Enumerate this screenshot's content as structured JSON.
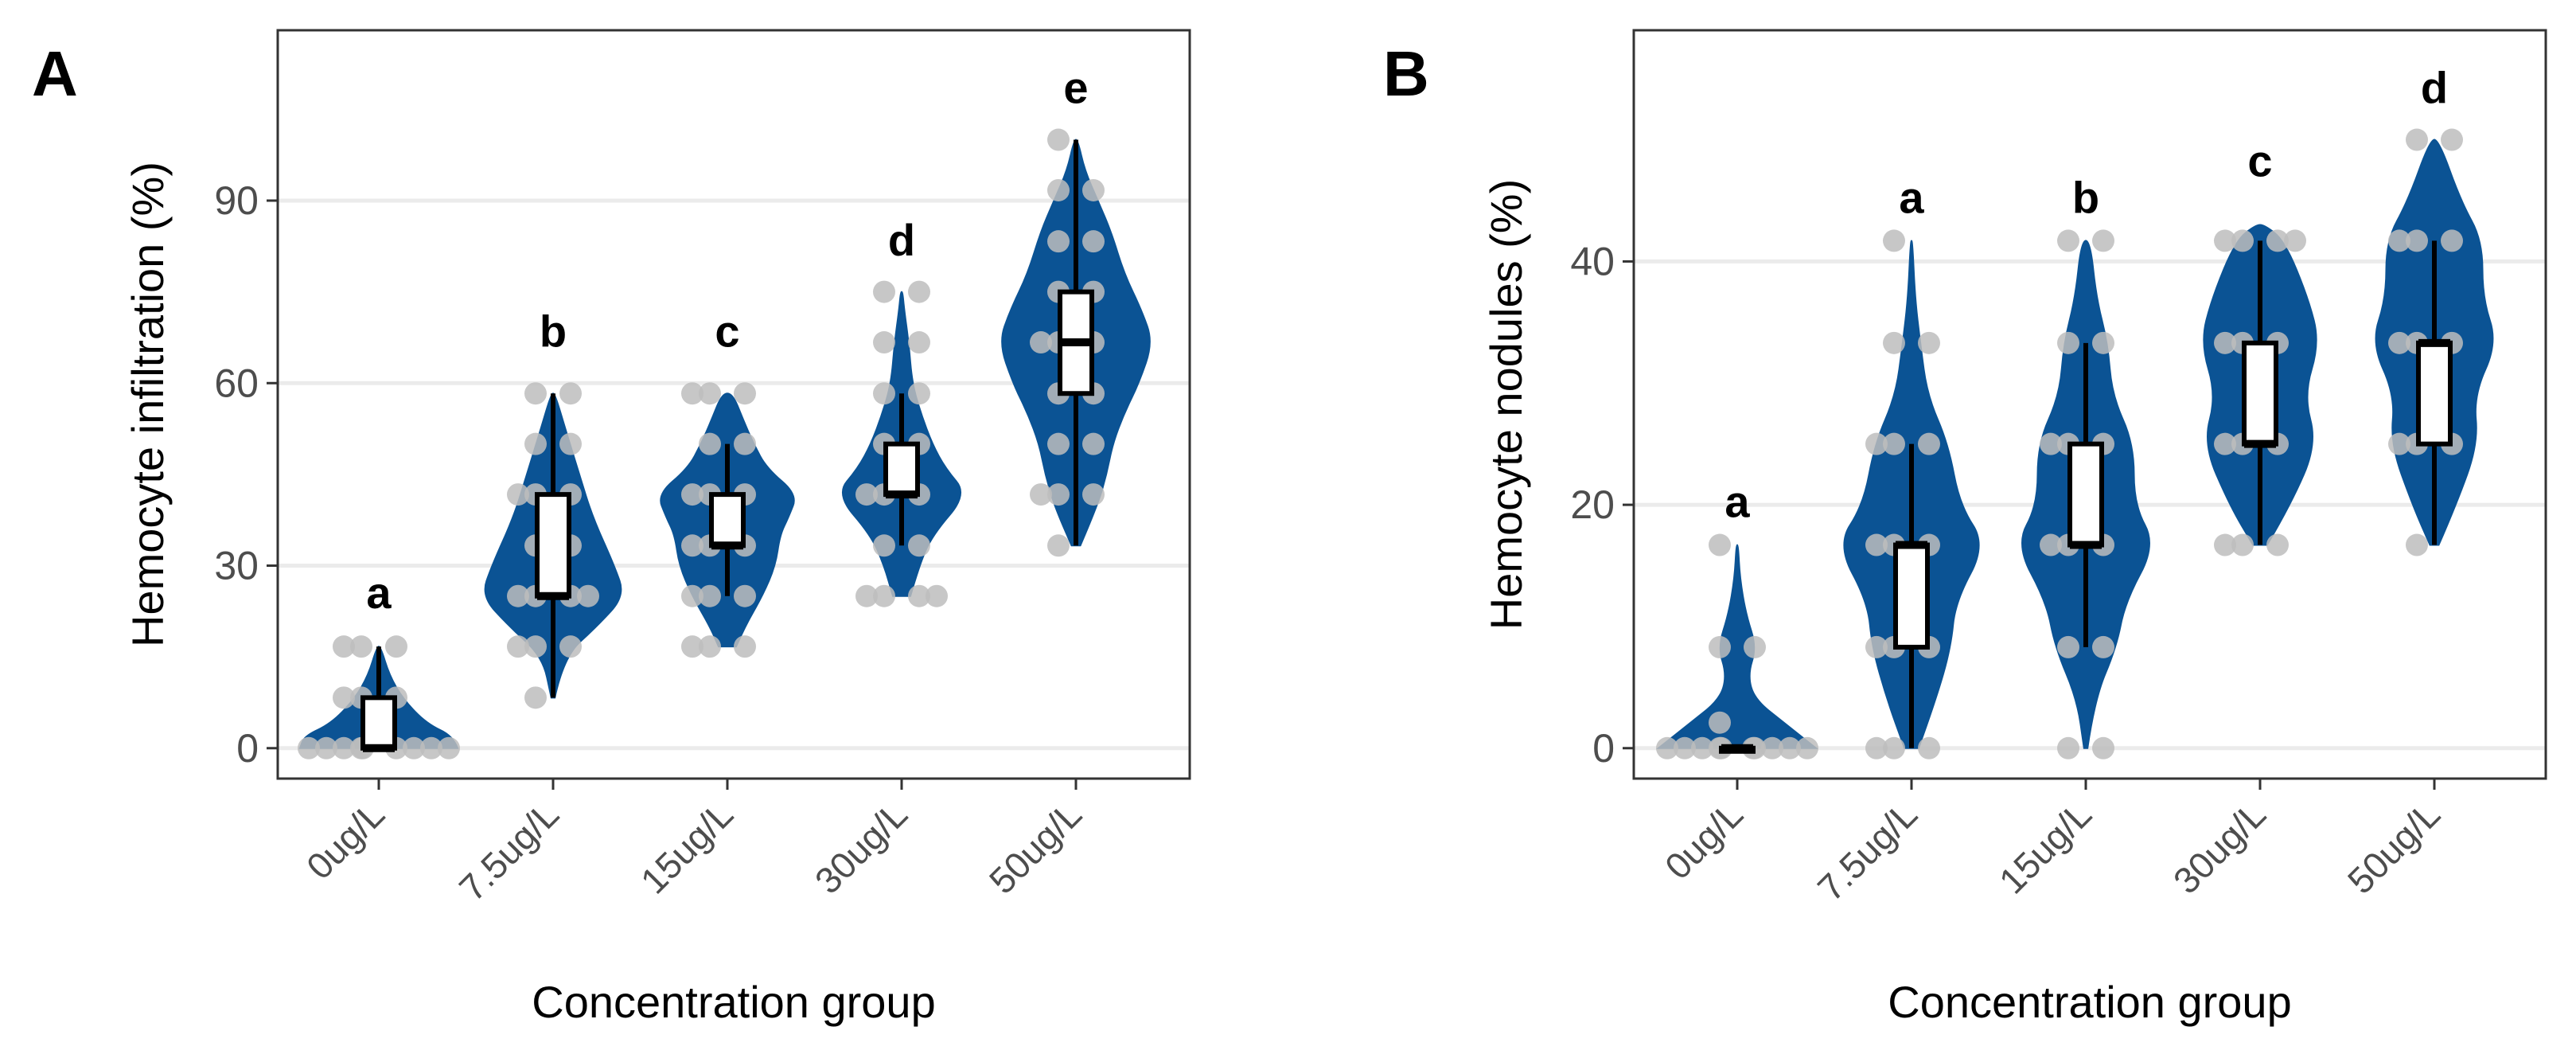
{
  "chart_data": [
    {
      "type": "violin",
      "panel_label": "A",
      "xlabel": "Concentration group",
      "ylabel": "Hemocyte infiltration (%)",
      "ylim": [
        -5,
        118
      ],
      "y_ticks": [
        0,
        30,
        60,
        90
      ],
      "y_tick_labels": [
        "0",
        "30",
        "60",
        "90"
      ],
      "categories": [
        "0ug/L",
        "7.5ug/L",
        "15ug/L",
        "30ug/L",
        "50ug/L"
      ],
      "significance_letters": [
        "a",
        "b",
        "c",
        "d",
        "e"
      ],
      "letter_y": [
        23,
        66,
        66,
        81,
        106
      ],
      "fill_color": "#0b5394",
      "point_color": "#bdbdbd",
      "grid": "horizontal",
      "groups": [
        {
          "name": "0ug/L",
          "box": {
            "min": 0,
            "q1": 0,
            "median": 0,
            "q3": 8.3,
            "max": 16.7
          },
          "density": [
            [
              0,
              0.9
            ],
            [
              2,
              0.85
            ],
            [
              4,
              0.55
            ],
            [
              8,
              0.28
            ],
            [
              12,
              0.12
            ],
            [
              16.7,
              0.02
            ]
          ],
          "points": [
            0,
            0,
            0,
            0,
            0,
            0,
            0,
            0,
            0,
            8.3,
            8.3,
            8.3,
            16.7,
            16.7,
            16.7
          ]
        },
        {
          "name": "7.5ug/L",
          "box": {
            "min": 8.3,
            "q1": 25,
            "median": 25,
            "q3": 41.7,
            "max": 58.3
          },
          "density": [
            [
              8.3,
              0.02
            ],
            [
              15,
              0.12
            ],
            [
              20,
              0.5
            ],
            [
              25,
              0.82
            ],
            [
              30,
              0.7
            ],
            [
              38,
              0.45
            ],
            [
              45,
              0.3
            ],
            [
              52,
              0.15
            ],
            [
              58.3,
              0.02
            ]
          ],
          "points": [
            8.3,
            16.7,
            16.7,
            16.7,
            25,
            25,
            25,
            25,
            33.3,
            33.3,
            41.7,
            41.7,
            41.7,
            50,
            50,
            58.3,
            58.3
          ]
        },
        {
          "name": "15ug/L",
          "box": {
            "min": 25,
            "q1": 33.3,
            "median": 33.3,
            "q3": 41.7,
            "max": 50
          },
          "density": [
            [
              16.7,
              0.1
            ],
            [
              20,
              0.2
            ],
            [
              25,
              0.4
            ],
            [
              30,
              0.55
            ],
            [
              35,
              0.6
            ],
            [
              38,
              0.7
            ],
            [
              41.7,
              0.8
            ],
            [
              46,
              0.45
            ],
            [
              50,
              0.3
            ],
            [
              54,
              0.18
            ],
            [
              58.3,
              0.06
            ]
          ],
          "points": [
            16.7,
            16.7,
            16.7,
            25,
            25,
            25,
            33.3,
            33.3,
            33.3,
            41.7,
            41.7,
            41.7,
            50,
            50,
            58.3,
            58.3,
            58.3
          ]
        },
        {
          "name": "30ug/L",
          "box": {
            "min": 33.3,
            "q1": 41.7,
            "median": 41.7,
            "q3": 50,
            "max": 58.3
          },
          "density": [
            [
              25,
              0.1
            ],
            [
              30,
              0.2
            ],
            [
              35,
              0.35
            ],
            [
              41.7,
              0.75
            ],
            [
              46,
              0.5
            ],
            [
              50,
              0.35
            ],
            [
              55,
              0.22
            ],
            [
              60,
              0.12
            ],
            [
              66.7,
              0.08
            ],
            [
              72,
              0.03
            ],
            [
              75,
              0.01
            ]
          ],
          "points": [
            25,
            25,
            25,
            25,
            33.3,
            33.3,
            41.7,
            41.7,
            41.7,
            50,
            50,
            58.3,
            58.3,
            66.7,
            66.7,
            75,
            75
          ]
        },
        {
          "name": "50ug/L",
          "box": {
            "min": 33.3,
            "q1": 58.3,
            "median": 66.7,
            "q3": 75,
            "max": 100
          },
          "density": [
            [
              33.3,
              0.05
            ],
            [
              40,
              0.25
            ],
            [
              45,
              0.35
            ],
            [
              50,
              0.42
            ],
            [
              55,
              0.55
            ],
            [
              60,
              0.72
            ],
            [
              66.7,
              0.88
            ],
            [
              72,
              0.75
            ],
            [
              78,
              0.55
            ],
            [
              85,
              0.4
            ],
            [
              90,
              0.25
            ],
            [
              95,
              0.1
            ],
            [
              100,
              0.02
            ]
          ],
          "points": [
            33.3,
            41.7,
            41.7,
            41.7,
            50,
            50,
            58.3,
            58.3,
            66.7,
            66.7,
            66.7,
            75,
            75,
            83.3,
            83.3,
            91.7,
            91.7,
            100
          ]
        }
      ]
    },
    {
      "type": "violin",
      "panel_label": "B",
      "xlabel": "Concentration group",
      "ylabel": "Hemocyte nodules (%)",
      "ylim": [
        -2.5,
        59
      ],
      "y_ticks": [
        0,
        20,
        40
      ],
      "y_tick_labels": [
        "0",
        "20",
        "40"
      ],
      "categories": [
        "0ug/L",
        "7.5ug/L",
        "15ug/L",
        "30ug/L",
        "50ug/L"
      ],
      "significance_letters": [
        "a",
        "a",
        "b",
        "c",
        "d"
      ],
      "letter_y": [
        19,
        44,
        44,
        47,
        53
      ],
      "fill_color": "#0b5394",
      "point_color": "#bdbdbd",
      "grid": "horizontal",
      "groups": [
        {
          "name": "0ug/L",
          "box": {
            "min": 0,
            "q1": 0,
            "median": 0,
            "q3": 0,
            "max": 0
          },
          "density": [
            [
              0,
              0.9
            ],
            [
              2,
              0.55
            ],
            [
              4,
              0.2
            ],
            [
              6,
              0.12
            ],
            [
              8.3,
              0.22
            ],
            [
              11,
              0.1
            ],
            [
              14,
              0.03
            ],
            [
              16.7,
              0.01
            ]
          ],
          "points": [
            0,
            0,
            0,
            0,
            0,
            0,
            0,
            0,
            0,
            0,
            2.1,
            8.3,
            8.3,
            16.7
          ]
        },
        {
          "name": "7.5ug/L",
          "box": {
            "min": 0,
            "q1": 8.3,
            "median": 16.7,
            "q3": 16.7,
            "max": 25
          },
          "density": [
            [
              0,
              0.08
            ],
            [
              4,
              0.28
            ],
            [
              8.3,
              0.45
            ],
            [
              12,
              0.5
            ],
            [
              16.7,
              0.85
            ],
            [
              20,
              0.55
            ],
            [
              25,
              0.42
            ],
            [
              29,
              0.18
            ],
            [
              33.3,
              0.1
            ],
            [
              37,
              0.04
            ],
            [
              41.7,
              0.01
            ]
          ],
          "points": [
            0,
            0,
            0,
            8.3,
            8.3,
            8.3,
            16.7,
            16.7,
            16.7,
            25,
            25,
            25,
            33.3,
            33.3,
            41.7
          ]
        },
        {
          "name": "15ug/L",
          "box": {
            "min": 8.3,
            "q1": 16.7,
            "median": 16.7,
            "q3": 25,
            "max": 33.3
          },
          "density": [
            [
              0,
              0.02
            ],
            [
              4,
              0.1
            ],
            [
              8.3,
              0.35
            ],
            [
              12,
              0.45
            ],
            [
              16.7,
              0.8
            ],
            [
              20,
              0.55
            ],
            [
              25,
              0.55
            ],
            [
              29,
              0.3
            ],
            [
              33.3,
              0.25
            ],
            [
              37,
              0.12
            ],
            [
              41.7,
              0.05
            ]
          ],
          "points": [
            0,
            0,
            8.3,
            8.3,
            16.7,
            16.7,
            16.7,
            25,
            25,
            25,
            33.3,
            33.3,
            41.7,
            41.7
          ]
        },
        {
          "name": "30ug/L",
          "box": {
            "min": 16.7,
            "q1": 25,
            "median": 25,
            "q3": 33.3,
            "max": 41.7
          },
          "density": [
            [
              16.7,
              0.08
            ],
            [
              20,
              0.35
            ],
            [
              25,
              0.65
            ],
            [
              29,
              0.5
            ],
            [
              33.3,
              0.68
            ],
            [
              37,
              0.55
            ],
            [
              41.7,
              0.28
            ],
            [
              43,
              0.05
            ]
          ],
          "points": [
            16.7,
            16.7,
            16.7,
            25,
            25,
            25,
            33.3,
            33.3,
            33.3,
            41.7,
            41.7,
            41.7,
            41.7
          ]
        },
        {
          "name": "50ug/L",
          "box": {
            "min": 16.7,
            "q1": 25,
            "median": 33.3,
            "q3": 33.3,
            "max": 41.7
          },
          "density": [
            [
              16.7,
              0.05
            ],
            [
              20,
              0.25
            ],
            [
              25,
              0.5
            ],
            [
              29,
              0.45
            ],
            [
              33.3,
              0.72
            ],
            [
              37,
              0.55
            ],
            [
              41.7,
              0.55
            ],
            [
              45,
              0.3
            ],
            [
              50,
              0.05
            ]
          ],
          "points": [
            16.7,
            25,
            25,
            25,
            33.3,
            33.3,
            33.3,
            41.7,
            41.7,
            41.7,
            50,
            50
          ]
        }
      ]
    }
  ]
}
